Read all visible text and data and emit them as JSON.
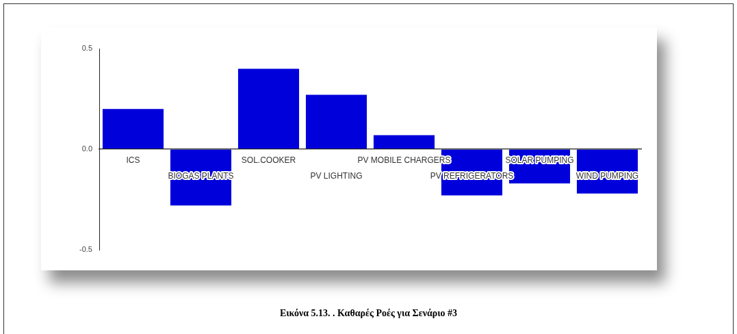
{
  "chart_data": {
    "type": "bar",
    "categories": [
      "ICS",
      "BIOGAS PLANTS",
      "SOL.COOKER",
      "PV LIGHTING",
      "PV MOBILE CHARGERS",
      "PV REFRIGERATORS",
      "SOLAR PUMPING",
      "WIND PUMPING"
    ],
    "values": [
      0.2,
      -0.28,
      0.4,
      0.27,
      0.07,
      -0.23,
      -0.17,
      -0.22
    ],
    "color": "#0000db",
    "ylim": [
      -0.5,
      0.5
    ],
    "yticks": [
      -0.5,
      {
        "value": 0,
        "label": "0.0"
      },
      0.5
    ],
    "grid": false,
    "legend": false,
    "annotations": [
      "Εικόνα 5.13. . Καθαρές Ροές για Σενάριο #3"
    ]
  }
}
